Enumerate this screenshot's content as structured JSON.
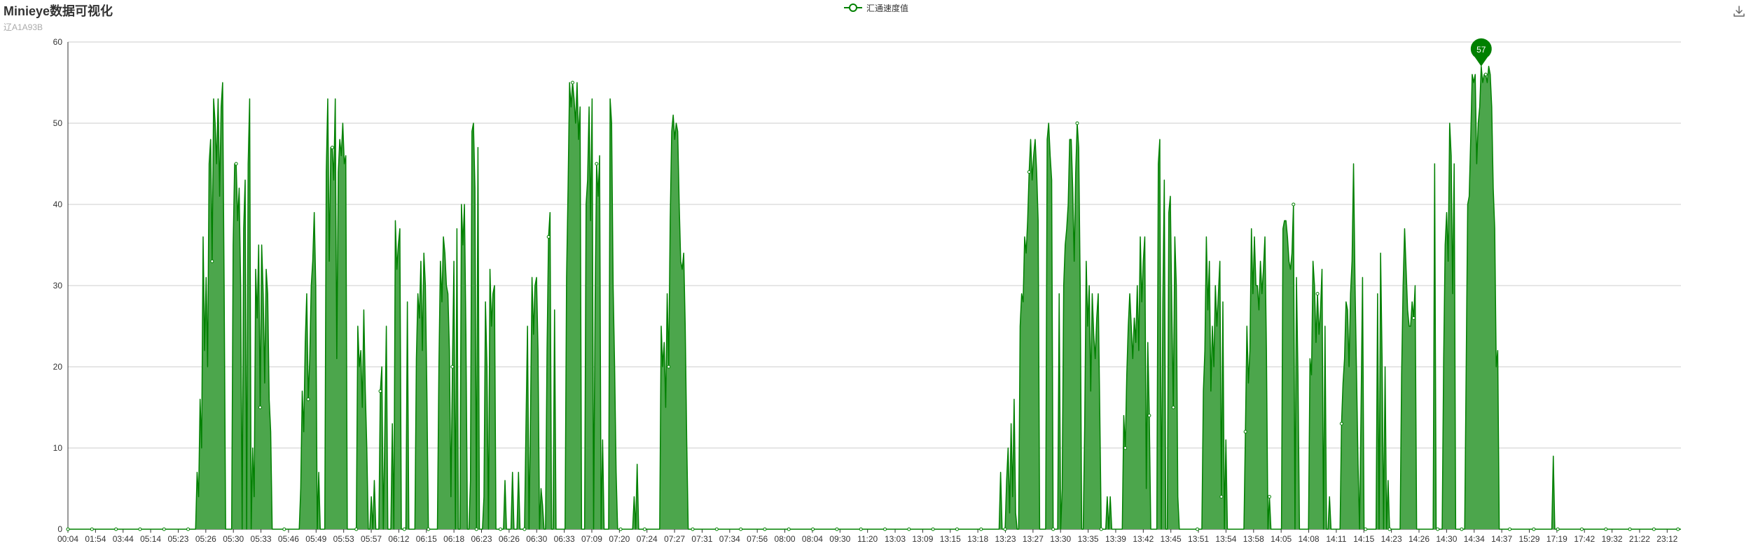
{
  "title": "Minieye数据可视化",
  "subtitle": "辽A1A93B",
  "legend": {
    "label": "汇通速度值"
  },
  "toolbox": {
    "icon": "download-icon"
  },
  "colors": {
    "series": "#008000",
    "area": "#4ca64c",
    "grid": "#cccccc",
    "axis": "#333333",
    "marker": "#008000"
  },
  "chart_data": {
    "type": "area",
    "title": "Minieye数据可视化",
    "subtitle": "辽A1A93B",
    "xlabel": "",
    "ylabel": "",
    "ylim": [
      0,
      60
    ],
    "yticks": [
      0,
      10,
      20,
      30,
      40,
      50,
      60
    ],
    "grid": true,
    "legend_position": "top-center",
    "xticks": [
      "00:04",
      "01:54",
      "03:44",
      "05:14",
      "05:23",
      "05:26",
      "05:30",
      "05:33",
      "05:46",
      "05:49",
      "05:53",
      "05:57",
      "06:12",
      "06:15",
      "06:18",
      "06:23",
      "06:26",
      "06:30",
      "06:33",
      "07:09",
      "07:20",
      "07:24",
      "07:27",
      "07:31",
      "07:34",
      "07:56",
      "08:00",
      "08:04",
      "09:30",
      "11:20",
      "13:03",
      "13:09",
      "13:15",
      "13:18",
      "13:23",
      "13:27",
      "13:30",
      "13:35",
      "13:39",
      "13:42",
      "13:45",
      "13:51",
      "13:54",
      "13:58",
      "14:05",
      "14:08",
      "14:11",
      "14:15",
      "14:23",
      "14:26",
      "14:30",
      "14:34",
      "14:37",
      "15:29",
      "17:19",
      "17:42",
      "19:32",
      "21:22",
      "23:12"
    ],
    "series": [
      {
        "name": "汇通速度值",
        "values": [
          0,
          0,
          0,
          0,
          0,
          0,
          0,
          0,
          0,
          0,
          0,
          0,
          0,
          0,
          0,
          0,
          0,
          0,
          0,
          0,
          0,
          0,
          0,
          0,
          0,
          0,
          0,
          0,
          0,
          0,
          0,
          0,
          0,
          0,
          0,
          0,
          0,
          0,
          0,
          0,
          0,
          0,
          0,
          0,
          0,
          0,
          0,
          0,
          0,
          0,
          0,
          0,
          0,
          0,
          0,
          0,
          0,
          0,
          0,
          0,
          0,
          0,
          0,
          0,
          0,
          0,
          0,
          0,
          0,
          0,
          0,
          0,
          0,
          0,
          0,
          0,
          0,
          0,
          0,
          0,
          0,
          0,
          0,
          0,
          0,
          0,
          7,
          4,
          16,
          10,
          36,
          22,
          31,
          20,
          45,
          48,
          33,
          53,
          50,
          45,
          53,
          41,
          52,
          55,
          30,
          0,
          0,
          0,
          0,
          0,
          35,
          45,
          45,
          38,
          42,
          30,
          0,
          37,
          43,
          0,
          45,
          53,
          0,
          10,
          4,
          32,
          26,
          35,
          15,
          35,
          29,
          18,
          32,
          29,
          16,
          12,
          0,
          0,
          0,
          0,
          0,
          0,
          0,
          0,
          0,
          0,
          0,
          0,
          0,
          0,
          0,
          0,
          0,
          0,
          0,
          5,
          17,
          12,
          23,
          29,
          16,
          21,
          30,
          33,
          39,
          30,
          0,
          7,
          0,
          0,
          0,
          0,
          44,
          53,
          33,
          47,
          47,
          43,
          53,
          21,
          44,
          48,
          46,
          50,
          45,
          46,
          0,
          0,
          0,
          0,
          0,
          0,
          0,
          25,
          20,
          22,
          15,
          27,
          17,
          10,
          0,
          0,
          4,
          0,
          6,
          0,
          0,
          0,
          17,
          20,
          0,
          12,
          25,
          0,
          0,
          0,
          13,
          0,
          38,
          32,
          35,
          37,
          0,
          0,
          0,
          0,
          28,
          0,
          0,
          0,
          0,
          0,
          21,
          29,
          26,
          33,
          22,
          34,
          30,
          17,
          0,
          0,
          0,
          0,
          0,
          0,
          0,
          20,
          33,
          28,
          36,
          34,
          30,
          29,
          22,
          4,
          20,
          33,
          0,
          37,
          0,
          0,
          40,
          35,
          40,
          24,
          0,
          0,
          6,
          49,
          50,
          42,
          0,
          47,
          0,
          0,
          0,
          4,
          28,
          20,
          0,
          32,
          25,
          29,
          30,
          0,
          0,
          0,
          0,
          0,
          0,
          6,
          0,
          0,
          0,
          0,
          7,
          0,
          0,
          0,
          7,
          0,
          0,
          0,
          0,
          13,
          25,
          0,
          14,
          31,
          24,
          30,
          31,
          22,
          0,
          5,
          3,
          0,
          0,
          22,
          36,
          39,
          0,
          0,
          27,
          0,
          0,
          0,
          0,
          0,
          0,
          0,
          31,
          42,
          55,
          52,
          55,
          53,
          50,
          55,
          48,
          52,
          0,
          0,
          0,
          40,
          43,
          52,
          38,
          53,
          0,
          28,
          45,
          41,
          46,
          0,
          11,
          0,
          0,
          0,
          0,
          53,
          50,
          30,
          20,
          7,
          0,
          0,
          0,
          0,
          0,
          0,
          0,
          0,
          0,
          0,
          0,
          4,
          0,
          8,
          0,
          0,
          0,
          0,
          0,
          0,
          0,
          0,
          0,
          0,
          0,
          0,
          0,
          0,
          0,
          25,
          20,
          23,
          15,
          29,
          20,
          38,
          49,
          51,
          48,
          50,
          49,
          40,
          33,
          32,
          34,
          25,
          11,
          0,
          0,
          0,
          0,
          0,
          0,
          0,
          0,
          0,
          0,
          0,
          0,
          0,
          0,
          0,
          0,
          0,
          0,
          0,
          0,
          0,
          0,
          0,
          0,
          0,
          0,
          0,
          0,
          0,
          0,
          0,
          0,
          0,
          0,
          0,
          0,
          0,
          0,
          0,
          0,
          0,
          0,
          0,
          0,
          0,
          0,
          0,
          0,
          0,
          0,
          0,
          0,
          0,
          0,
          0,
          0,
          0,
          0,
          0,
          0,
          0,
          0,
          0,
          0,
          0,
          0,
          0,
          0,
          0,
          0,
          0,
          0,
          0,
          0,
          0,
          0,
          0,
          0,
          0,
          0,
          0,
          0,
          0,
          0,
          0,
          0,
          0,
          0,
          0,
          0,
          0,
          0,
          0,
          0,
          0,
          0,
          0,
          0,
          0,
          0,
          0,
          0,
          0,
          0,
          0,
          0,
          0,
          0,
          0,
          0,
          0,
          0,
          0,
          0,
          0,
          0,
          0,
          0,
          0,
          0,
          0,
          0,
          0,
          0,
          0,
          0,
          0,
          0,
          0,
          0,
          0,
          0,
          0,
          0,
          0,
          0,
          0,
          0,
          0,
          0,
          0,
          0,
          0,
          0,
          0,
          0,
          0,
          0,
          0,
          0,
          0,
          0,
          0,
          0,
          0,
          0,
          0,
          0,
          0,
          0,
          0,
          0,
          0,
          0,
          0,
          0,
          0,
          0,
          0,
          0,
          0,
          0,
          0,
          0,
          0,
          0,
          0,
          0,
          0,
          0,
          0,
          0,
          0,
          0,
          0,
          0,
          0,
          0,
          0,
          0,
          0,
          0,
          0,
          0,
          0,
          0,
          0,
          0,
          0,
          0,
          0,
          0,
          0,
          0,
          0,
          0,
          0,
          0,
          7,
          0,
          0,
          0,
          6,
          10,
          2,
          13,
          4,
          16,
          2,
          0,
          0,
          25,
          29,
          28,
          36,
          34,
          38,
          44,
          48,
          43,
          46,
          48,
          44,
          38,
          0,
          0,
          0,
          0,
          0,
          48,
          50,
          46,
          43,
          0,
          0,
          0,
          0,
          29,
          0,
          5,
          30,
          35,
          37,
          40,
          48,
          48,
          42,
          33,
          44,
          50,
          47,
          30,
          0,
          0,
          13,
          33,
          25,
          30,
          17,
          29,
          24,
          21,
          26,
          29,
          15,
          0,
          0,
          0,
          0,
          4,
          0,
          4,
          0,
          0,
          0,
          0,
          0,
          0,
          0,
          0,
          14,
          10,
          19,
          25,
          29,
          25,
          21,
          26,
          23,
          30,
          22,
          36,
          28,
          33,
          36,
          5,
          23,
          14,
          0,
          0,
          0,
          0,
          0,
          45,
          48,
          0,
          28,
          43,
          0,
          0,
          39,
          41,
          27,
          15,
          36,
          30,
          4,
          0,
          0,
          0,
          0,
          0,
          0,
          0,
          0,
          0,
          0,
          0,
          0,
          0,
          0,
          0,
          0,
          17,
          22,
          36,
          27,
          33,
          17,
          25,
          20,
          30,
          25,
          29,
          33,
          4,
          28,
          0,
          11,
          0,
          0,
          0,
          0,
          0,
          0,
          0,
          0,
          0,
          0,
          0,
          0,
          12,
          25,
          18,
          22,
          37,
          29,
          36,
          30,
          30,
          27,
          33,
          29,
          32,
          36,
          22,
          0,
          4,
          0,
          0,
          0,
          0,
          0,
          0,
          0,
          0,
          37,
          38,
          38,
          36,
          33,
          32,
          34,
          40,
          0,
          31,
          19,
          0,
          0,
          0,
          0,
          0,
          0,
          0,
          21,
          19,
          33,
          30,
          23,
          29,
          24,
          27,
          32,
          0,
          25,
          0,
          0,
          4,
          0,
          0,
          0,
          0,
          0,
          0,
          0,
          13,
          18,
          21,
          28,
          27,
          20,
          29,
          33,
          45,
          30,
          19,
          8,
          0,
          15,
          31,
          0,
          0,
          0,
          0,
          0,
          0,
          0,
          0,
          0,
          29,
          0,
          34,
          21,
          0,
          20,
          0,
          6,
          0,
          0,
          0,
          0,
          0,
          0,
          0,
          0,
          19,
          30,
          37,
          32,
          27,
          25,
          25,
          28,
          26,
          30,
          0,
          0,
          0,
          0,
          0,
          0,
          0,
          0,
          0,
          0,
          0,
          0,
          45,
          0,
          0,
          0,
          0,
          0,
          21,
          35,
          39,
          33,
          50,
          46,
          29,
          45,
          0,
          0,
          0,
          0,
          0,
          0,
          0,
          20,
          40,
          41,
          48,
          56,
          55,
          56,
          45,
          50,
          52,
          57,
          55,
          56,
          56,
          55,
          57,
          56,
          52,
          42,
          37,
          20,
          22,
          0,
          0,
          0,
          0,
          0,
          0,
          0,
          0,
          0,
          0,
          0,
          0,
          0,
          0,
          0,
          0,
          0,
          0,
          0,
          0,
          0,
          0,
          0,
          0,
          0,
          0,
          0,
          0,
          0,
          0,
          0,
          0,
          0,
          0,
          0,
          0,
          9,
          0,
          0,
          0,
          0,
          0,
          0,
          0,
          0,
          0,
          0,
          0,
          0,
          0,
          0,
          0,
          0,
          0,
          0,
          0,
          0,
          0,
          0,
          0,
          0,
          0,
          0,
          0,
          0,
          0,
          0,
          0,
          0,
          0,
          0,
          0,
          0,
          0,
          0,
          0,
          0,
          0,
          0,
          0,
          0,
          0,
          0,
          0,
          0,
          0,
          0,
          0,
          0,
          0,
          0,
          0,
          0,
          0,
          0,
          0,
          0,
          0,
          0,
          0,
          0,
          0,
          0,
          0,
          0,
          0,
          0,
          0,
          0,
          0,
          0,
          0,
          0,
          0,
          0,
          0,
          0,
          0,
          0,
          0,
          0,
          0
        ]
      }
    ],
    "max_marker": {
      "value": 57,
      "x": "14:30"
    }
  }
}
